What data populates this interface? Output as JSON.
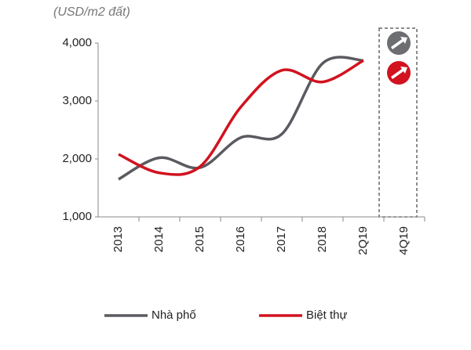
{
  "chart_data": {
    "type": "line",
    "subtitle": "(USD/m2 đất)",
    "categories": [
      "2013",
      "2014",
      "2015",
      "2016",
      "2017",
      "2018",
      "2Q19",
      "4Q19"
    ],
    "series": [
      {
        "name": "Nhà phố",
        "color": "#5a5b60",
        "values": [
          1650,
          2020,
          1850,
          2370,
          2430,
          3650,
          3700,
          null
        ]
      },
      {
        "name": "Biệt thự",
        "color": "#d2121f",
        "values": [
          2080,
          1760,
          1870,
          2900,
          3530,
          3330,
          3700,
          null
        ]
      }
    ],
    "ylim": [
      1000,
      4000
    ],
    "yticks": [
      {
        "value": 1000,
        "label": "1,000"
      },
      {
        "value": 2000,
        "label": "2,000"
      },
      {
        "value": 3000,
        "label": "3,000"
      },
      {
        "value": 4000,
        "label": "4,000"
      }
    ],
    "grid": false
  }
}
